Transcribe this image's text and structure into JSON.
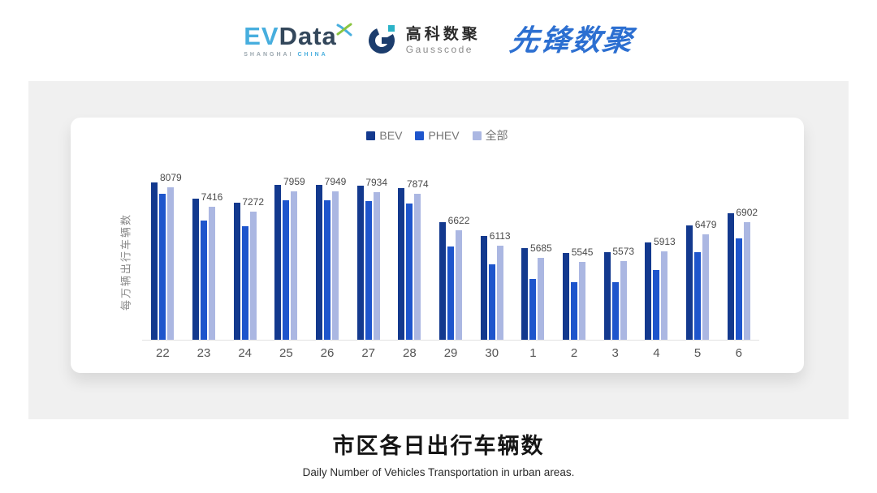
{
  "header": {
    "evdata_logo": {
      "ev": "EV",
      "data": "Data",
      "sub_left": "SHANGHAI",
      "sub_right": "CHINA"
    },
    "gausscode_logo": {
      "cn": "高科数聚",
      "en": "Gausscode"
    },
    "pioneer_logo": {
      "text": "先锋数聚"
    }
  },
  "colors": {
    "bev": "#13398E",
    "phev": "#1E55CC",
    "all": "#ABB7E2",
    "panel_bg": "#F0F0F0",
    "axis_line": "#E2E2E2",
    "data_label": "#4a4a4a",
    "evdata_blue": "#47AEDE",
    "evdata_slate": "#33475B",
    "evdata_green": "#8BC540",
    "gauss_navy": "#1C3D6D",
    "gauss_teal": "#2BB3C8",
    "pioneer_blue": "#2C6FD1"
  },
  "chart_data": {
    "type": "bar",
    "title": "市区各日出行车辆数",
    "subtitle": "Daily Number of Vehicles Transportation in urban areas.",
    "ylabel": "每万辆出行车辆数",
    "xlabel": "",
    "grid": false,
    "legend_position": "top",
    "axis_min": 2900,
    "axis_max": 9080,
    "categories": [
      "22",
      "23",
      "24",
      "25",
      "26",
      "27",
      "28",
      "29",
      "30",
      "1",
      "2",
      "3",
      "4",
      "5",
      "6"
    ],
    "series": [
      {
        "name": "BEV",
        "color": "#13398E",
        "values": [
          8240,
          7690,
          7570,
          8170,
          8170,
          8150,
          8060,
          6910,
          6420,
          6030,
          5860,
          5880,
          6210,
          6790,
          7200
        ]
      },
      {
        "name": "PHEV",
        "color": "#1E55CC",
        "values": [
          7870,
          6970,
          6770,
          7650,
          7650,
          7620,
          7550,
          6080,
          5470,
          4970,
          4870,
          4870,
          5280,
          5890,
          6350
        ]
      },
      {
        "name": "全部",
        "color": "#ABB7E2",
        "values": [
          8079,
          7416,
          7272,
          7959,
          7949,
          7934,
          7874,
          6622,
          6113,
          5685,
          5545,
          5573,
          5913,
          6479,
          6902
        ]
      }
    ],
    "data_labels": [
      8079,
      7416,
      7272,
      7959,
      7949,
      7934,
      7874,
      6622,
      6113,
      5685,
      5545,
      5573,
      5913,
      6479,
      6902
    ]
  }
}
